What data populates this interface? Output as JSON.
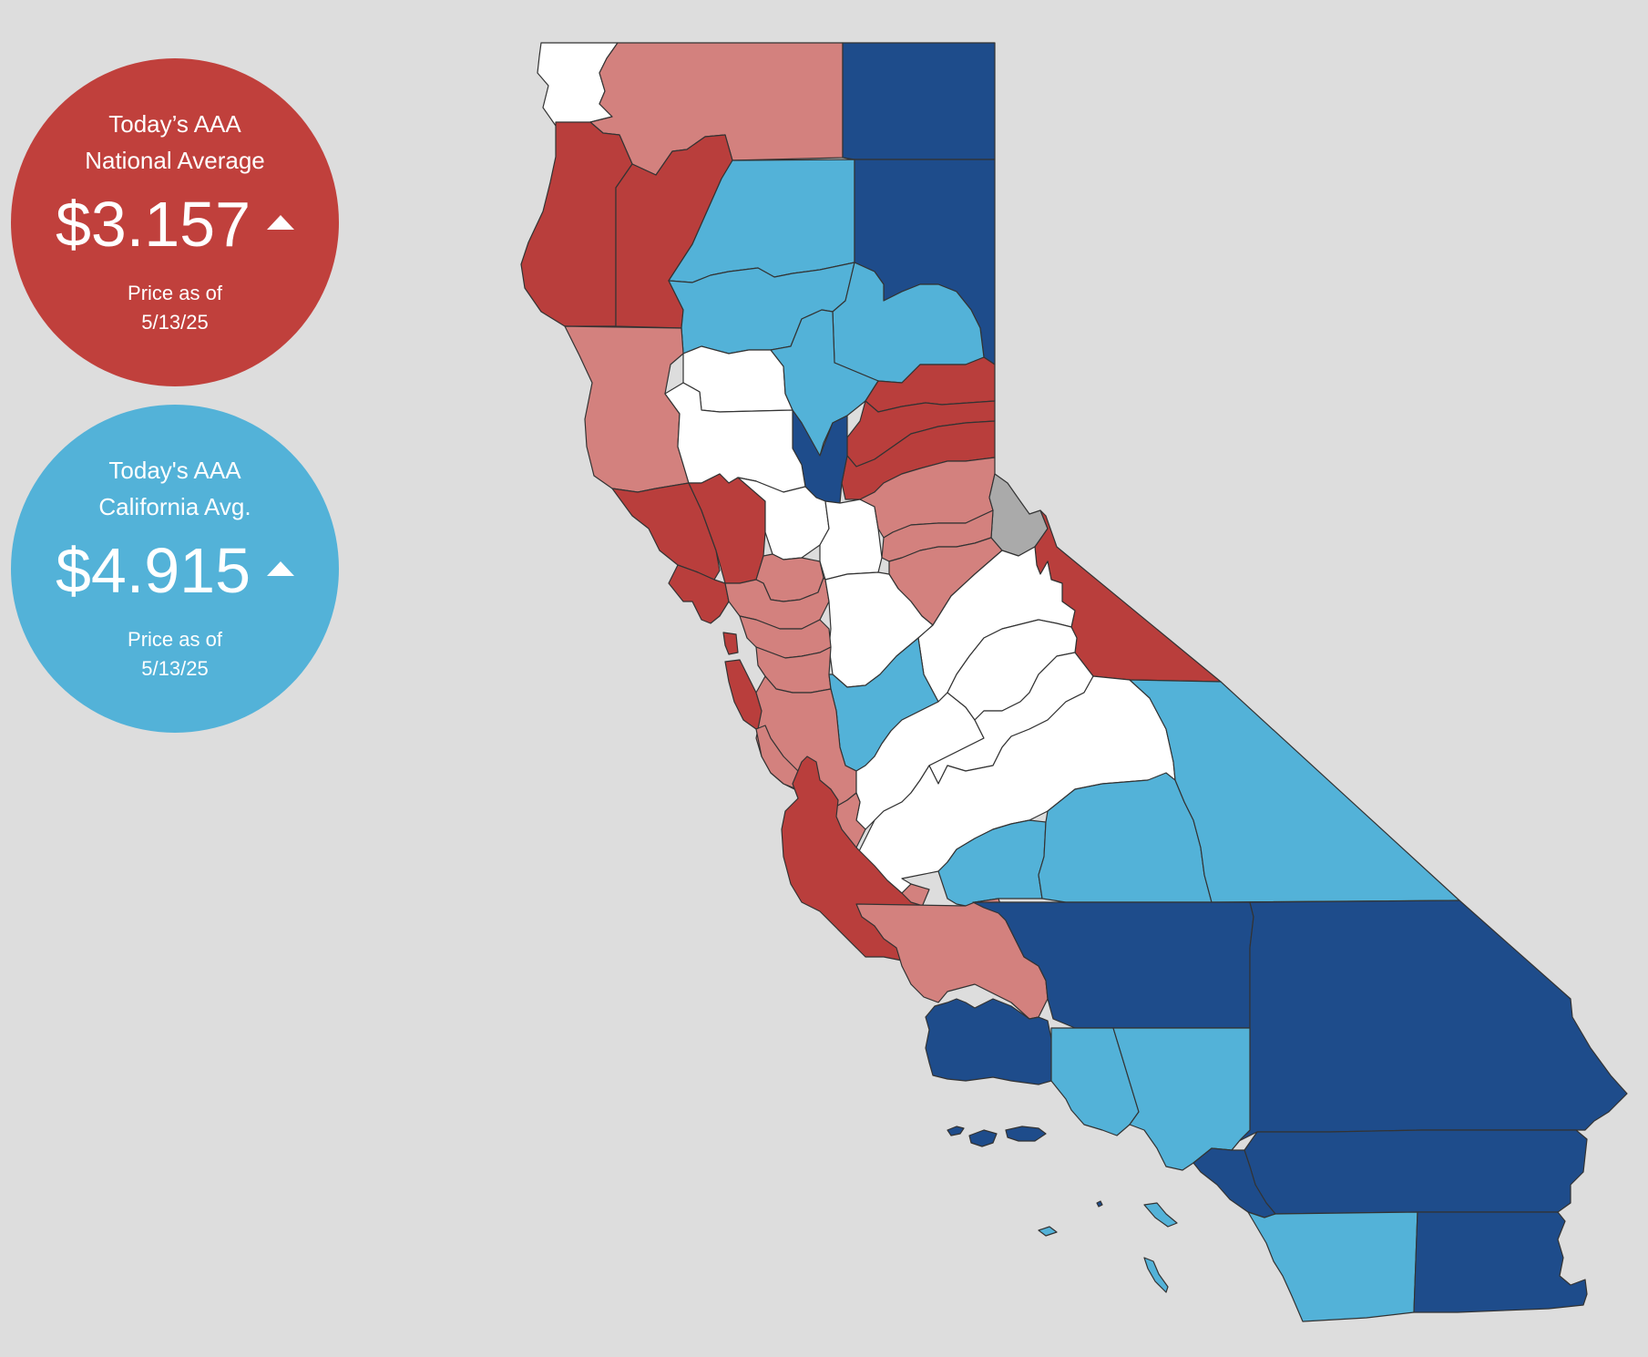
{
  "national": {
    "title_line1": "Today’s AAA",
    "title_line2": "National Average",
    "price": "$3.157",
    "asof_line1": "Price as of",
    "asof_line2": "5/13/25",
    "color": "#c0403c",
    "trend_icon": "triangle-up-icon"
  },
  "california": {
    "title_line1": "Today's AAA",
    "title_line2": "California Avg.",
    "price": "$4.915",
    "asof_line1": "Price as of",
    "asof_line2": "5/13/25",
    "color": "#53b2d8",
    "trend_icon": "triangle-up-icon"
  },
  "map_colors": {
    "dark_red": "#b93e3c",
    "light_red": "#d3817e",
    "white": "#ffffff",
    "light_blue": "#53b2d8",
    "dark_blue": "#1e4c8b",
    "gray": "#aaaaaa",
    "background": "#dddddd"
  }
}
